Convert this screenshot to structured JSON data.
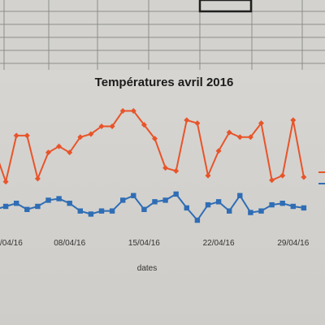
{
  "chart_data": {
    "type": "line",
    "title": "Températures avril 2016",
    "xlabel": "dates",
    "ylabel": "",
    "x_ticks": [
      "01/04/16",
      "08/04/16",
      "15/04/16",
      "22/04/16",
      "29/04/16"
    ],
    "x_tick_labels_visible": [
      "/04/16",
      "08/04/16",
      "15/04/16",
      "22/04/16",
      "29/04/16"
    ],
    "x": [
      "01/04/16",
      "02/04/16",
      "03/04/16",
      "04/04/16",
      "05/04/16",
      "06/04/16",
      "07/04/16",
      "08/04/16",
      "09/04/16",
      "10/04/16",
      "11/04/16",
      "12/04/16",
      "13/04/16",
      "14/04/16",
      "15/04/16",
      "16/04/16",
      "17/04/16",
      "18/04/16",
      "19/04/16",
      "20/04/16",
      "21/04/16",
      "22/04/16",
      "23/04/16",
      "24/04/16",
      "25/04/16",
      "26/04/16",
      "27/04/16",
      "28/04/16",
      "29/04/16",
      "30/04/16"
    ],
    "series": [
      {
        "color": "#e8542a",
        "marker": "diamond",
        "values": [
          16,
          12,
          18,
          18,
          12.4,
          15.8,
          16.6,
          15.8,
          17.8,
          18.2,
          19.2,
          19.2,
          21.2,
          21.2,
          19.4,
          17.6,
          13.8,
          13.4,
          20,
          19.6,
          12.8,
          16,
          18.4,
          17.8,
          17.8,
          19.6,
          12.2,
          12.8,
          20,
          12.6
        ]
      },
      {
        "color": "#2f6db5",
        "marker": "square",
        "values": [
          8.4,
          8.8,
          9.2,
          8.4,
          8.8,
          9.6,
          9.8,
          9.2,
          8.2,
          7.8,
          8.2,
          8.2,
          9.6,
          10.2,
          8.4,
          9.4,
          9.6,
          10.4,
          8.6,
          7.0,
          9.0,
          9.4,
          8.2,
          10.2,
          8.0,
          8.2,
          9.0,
          9.2,
          8.8,
          8.6
        ]
      }
    ],
    "ylim": [
      5,
      24
    ],
    "grid": false,
    "legend": "right"
  }
}
